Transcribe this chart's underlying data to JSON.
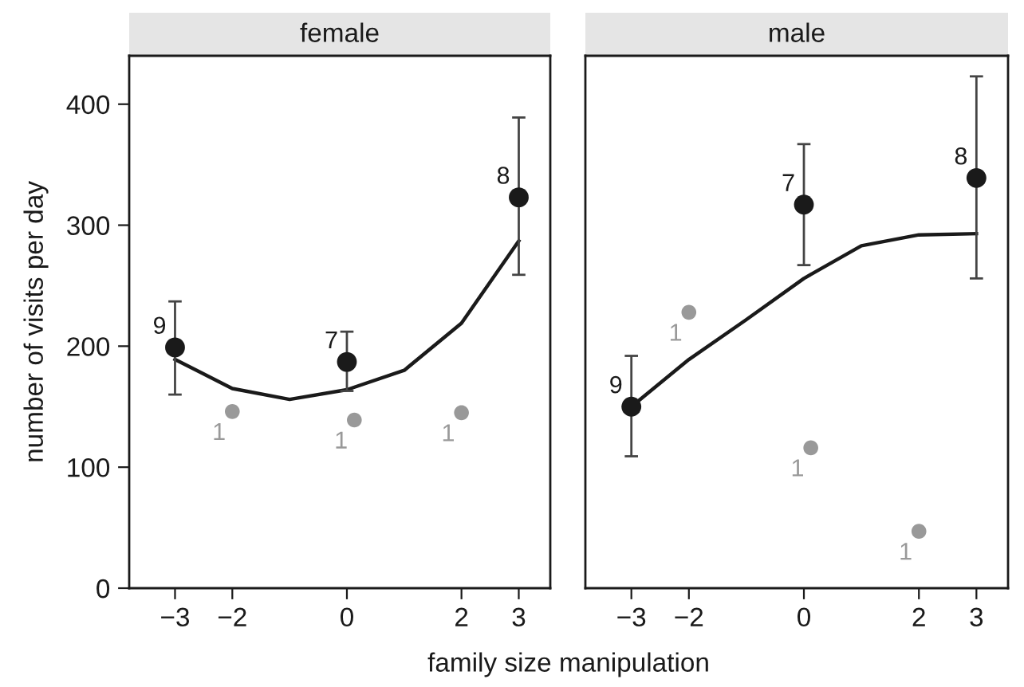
{
  "chart_data": [
    {
      "type": "scatter",
      "title": "female",
      "ylabel": "number of visits per day",
      "xlabel": "family size manipulation",
      "xlim": [
        -3.8,
        3.55
      ],
      "ylim": [
        0,
        440
      ],
      "xticks": [
        -3,
        -2,
        0,
        2,
        3
      ],
      "yticks": [
        0,
        100,
        200,
        300,
        400
      ],
      "grid": false,
      "series": [
        {
          "type": "line",
          "color": "#1a1a1a",
          "x": [
            -3,
            -2,
            -1,
            0,
            1,
            2,
            3
          ],
          "values": [
            189,
            165,
            156,
            164,
            180,
            219,
            287
          ]
        },
        {
          "marker": "circle",
          "color": "#999999",
          "x": [
            -2,
            0.13,
            2
          ],
          "values": [
            146,
            139,
            145
          ]
        },
        {
          "marker": "circle",
          "color": "#1a1a1a",
          "x": [
            -3,
            0,
            3
          ],
          "values": [
            199,
            187,
            323
          ],
          "errors": [
            [
              160,
              237
            ],
            [
              163,
              212
            ],
            [
              259,
              389
            ]
          ]
        }
      ],
      "annotations": [
        {
          "text": "9",
          "x": -3,
          "y": 199
        },
        {
          "text": "7",
          "x": 0,
          "y": 187
        },
        {
          "text": "8",
          "x": 3,
          "y": 323
        },
        {
          "text": "1",
          "x": -2,
          "y": 146
        },
        {
          "text": "1",
          "x": 0.13,
          "y": 139
        },
        {
          "text": "1",
          "x": 2,
          "y": 145
        }
      ]
    },
    {
      "type": "scatter",
      "title": "male",
      "xlim": [
        -3.8,
        3.55
      ],
      "ylim": [
        0,
        440
      ],
      "xticks": [
        -3,
        -2,
        0,
        2,
        3
      ],
      "yticks": [
        0,
        100,
        200,
        300,
        400
      ],
      "tick_labels": "x",
      "grid": false,
      "series": [
        {
          "type": "line",
          "color": "#1a1a1a",
          "x": [
            -3,
            -2,
            -1,
            0,
            1,
            2,
            3
          ],
          "values": [
            150,
            189,
            222,
            256,
            283,
            292,
            293
          ]
        },
        {
          "marker": "circle",
          "color": "#999999",
          "x": [
            -2,
            0.12,
            2
          ],
          "values": [
            228,
            116,
            47
          ]
        },
        {
          "marker": "circle",
          "color": "#1a1a1a",
          "x": [
            -3,
            0,
            3
          ],
          "values": [
            150,
            317,
            339
          ],
          "errors": [
            [
              109,
              192
            ],
            [
              267,
              367
            ],
            [
              256,
              423
            ]
          ]
        }
      ],
      "annotations": [
        {
          "text": "9",
          "x": -3,
          "y": 150
        },
        {
          "text": "7",
          "x": 0,
          "y": 317
        },
        {
          "text": "8",
          "x": 3,
          "y": 339
        },
        {
          "text": "1",
          "x": -2,
          "y": 228
        },
        {
          "text": "1",
          "x": 0.12,
          "y": 116
        },
        {
          "text": "1",
          "x": 2,
          "y": 47
        }
      ]
    }
  ]
}
